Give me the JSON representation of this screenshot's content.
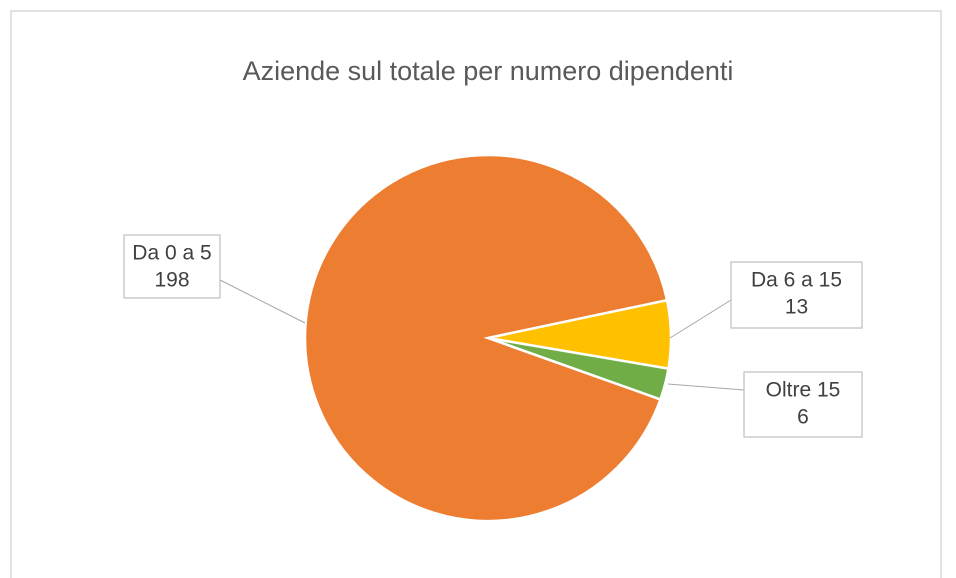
{
  "chart_data": {
    "type": "pie",
    "title": "Aziende sul totale per numero dipendenti",
    "categories": [
      "Da 0 a 5",
      "Da 6 a 15",
      "Oltre 15"
    ],
    "values": [
      198,
      13,
      6
    ],
    "colors": [
      "#ed7d31",
      "#ffc000",
      "#70ad47"
    ]
  }
}
